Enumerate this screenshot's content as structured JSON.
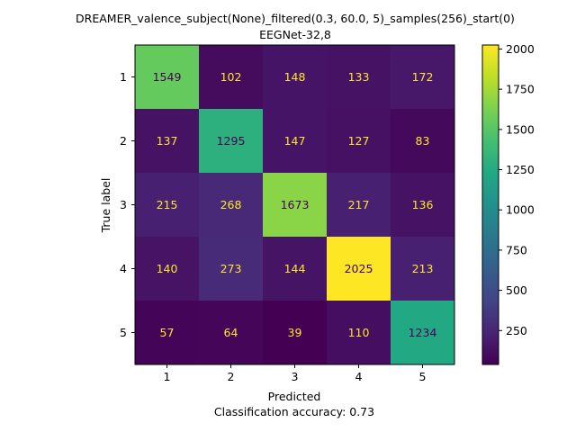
{
  "chart_data": {
    "type": "heatmap",
    "title_line1": "DREAMER_valence_subject(None)_filtered(0.3, 60.0, 5)_samples(256)_start(0)",
    "title_line2": "EEGNet-32,8",
    "xlabel": "Predicted",
    "ylabel": "True label",
    "footer": "Classification accuracy: 0.73",
    "x_labels": [
      "1",
      "2",
      "3",
      "4",
      "5"
    ],
    "y_labels": [
      "1",
      "2",
      "3",
      "4",
      "5"
    ],
    "matrix": [
      [
        1549,
        102,
        148,
        133,
        172
      ],
      [
        137,
        1295,
        147,
        127,
        83
      ],
      [
        215,
        268,
        1673,
        217,
        136
      ],
      [
        140,
        273,
        144,
        2025,
        213
      ],
      [
        57,
        64,
        39,
        110,
        1234
      ]
    ],
    "colormap": "viridis",
    "colorbar_range": [
      39,
      2025
    ],
    "colorbar_ticks": [
      "250",
      "500",
      "750",
      "1000",
      "1250",
      "1500",
      "1750",
      "2000"
    ],
    "text_color_high": "#440154",
    "text_color_low": "#fde725"
  }
}
